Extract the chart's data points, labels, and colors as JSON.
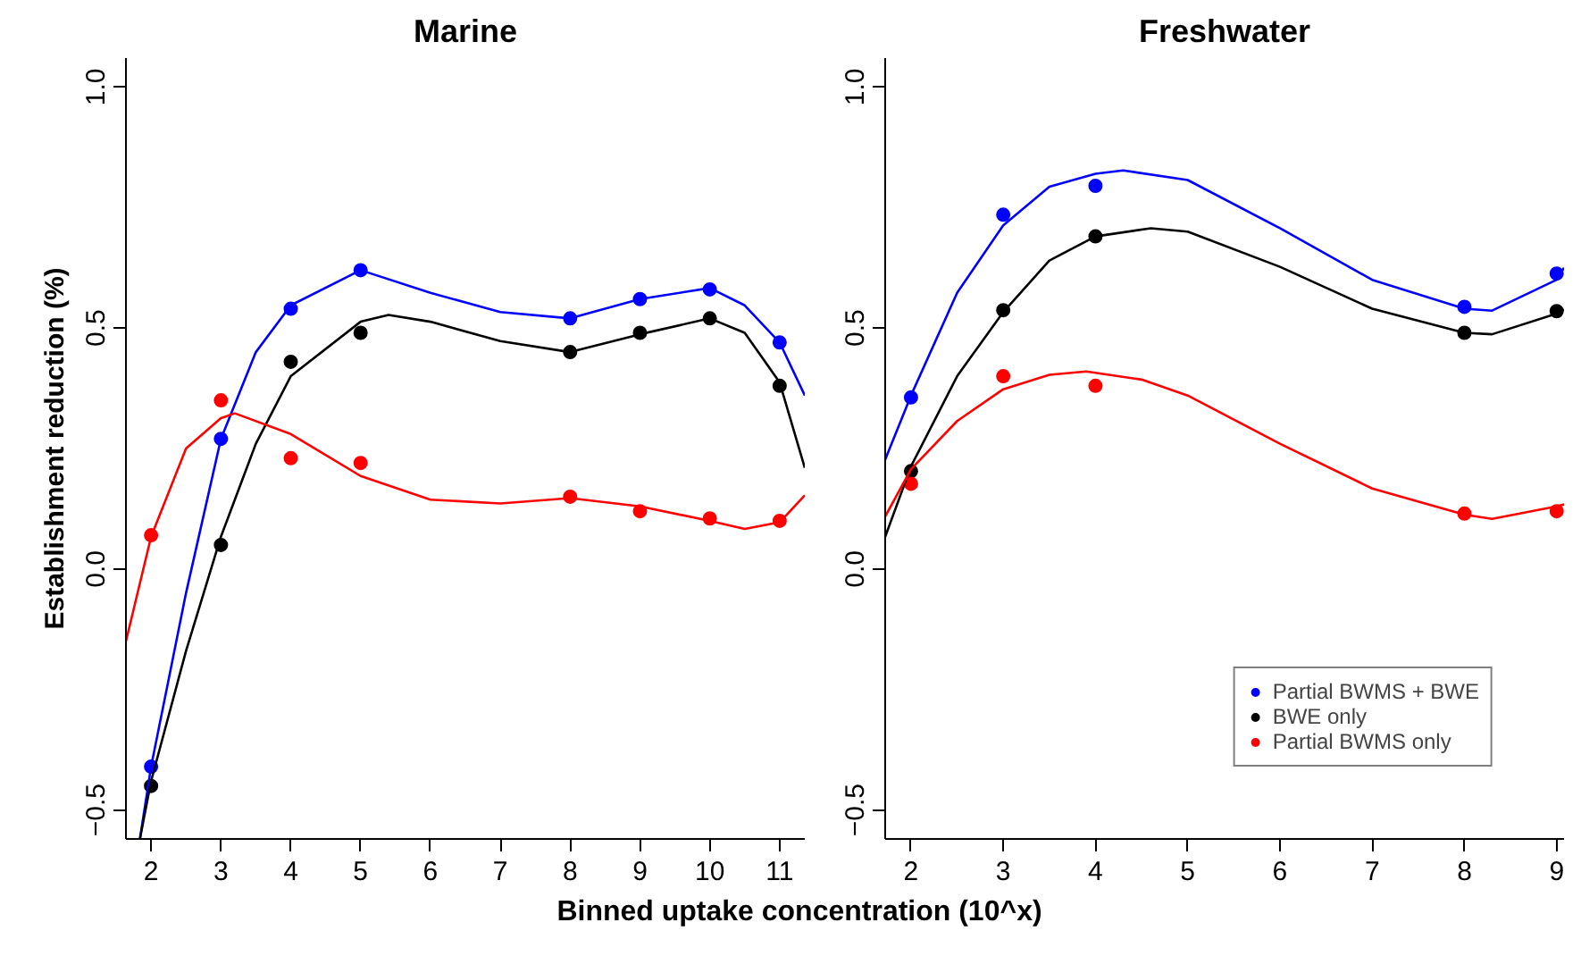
{
  "chart_data": [
    {
      "type": "scatter",
      "title": "Marine",
      "ylabel": "Establishment reduction (%)",
      "xlabel": "Binned uptake concentration (10^x)",
      "marker": "circle",
      "grid": false,
      "xlim": [
        1.64,
        11.36
      ],
      "xticks": [
        2,
        3,
        4,
        5,
        6,
        7,
        8,
        9,
        10,
        11
      ],
      "ylim": [
        -0.56,
        1.06
      ],
      "yticks": [
        {
          "value": -0.5,
          "label": "−0.5"
        },
        {
          "value": 0,
          "label": "0.0"
        },
        0.5,
        {
          "value": 1,
          "label": "1.0"
        }
      ],
      "series": [
        {
          "color": "#0000ff",
          "x": [
            2,
            3,
            4,
            5,
            8,
            9,
            10,
            11
          ],
          "values": [
            -0.41,
            0.27,
            0.54,
            0.62,
            0.52,
            0.56,
            0.58,
            0.47
          ]
        },
        {
          "color": "#000000",
          "x": [
            2,
            3,
            4,
            5,
            8,
            9,
            10,
            11
          ],
          "values": [
            -0.45,
            0.05,
            0.43,
            0.49,
            0.45,
            0.49,
            0.52,
            0.38
          ]
        },
        {
          "color": "#ff0000",
          "x": [
            2,
            3,
            4,
            5,
            8,
            9,
            10,
            11
          ],
          "values": [
            0.07,
            0.35,
            0.23,
            0.22,
            0.15,
            0.12,
            0.105,
            0.1
          ]
        },
        {
          "type": "line",
          "marker": "none",
          "color": "#0000ff",
          "x": [
            1.84,
            2,
            2.5,
            3,
            3.5,
            4,
            5,
            6,
            7,
            8,
            9,
            10,
            10.5,
            11,
            11.36
          ],
          "values": [
            -0.56,
            -0.41,
            -0.05,
            0.27,
            0.45,
            0.547,
            0.62,
            0.573,
            0.533,
            0.52,
            0.56,
            0.583,
            0.547,
            0.47,
            0.36
          ]
        },
        {
          "type": "line",
          "marker": "none",
          "color": "#000000",
          "x": [
            1.84,
            2,
            2.5,
            3,
            3.5,
            4,
            5,
            5.4,
            6,
            7,
            8,
            9,
            10,
            10.5,
            11,
            11.36
          ],
          "values": [
            -0.56,
            -0.44,
            -0.17,
            0.067,
            0.26,
            0.4,
            0.513,
            0.527,
            0.513,
            0.473,
            0.45,
            0.487,
            0.52,
            0.49,
            0.387,
            0.21
          ]
        },
        {
          "type": "line",
          "marker": "none",
          "color": "#ff0000",
          "x": [
            1.64,
            2,
            2.5,
            3,
            3.2,
            4,
            5,
            6,
            7,
            8,
            9,
            10,
            10.5,
            11,
            11.36
          ],
          "values": [
            -0.15,
            0.067,
            0.25,
            0.313,
            0.323,
            0.28,
            0.193,
            0.144,
            0.136,
            0.147,
            0.13,
            0.1,
            0.083,
            0.097,
            0.153
          ]
        }
      ]
    },
    {
      "type": "scatter",
      "title": "Freshwater",
      "marker": "circle",
      "grid": false,
      "legend": "bottom right",
      "xlim": [
        1.72,
        9.08
      ],
      "xticks": [
        2,
        3,
        4,
        5,
        6,
        7,
        8,
        9
      ],
      "ylim": [
        -0.56,
        1.06
      ],
      "yticks": [
        {
          "value": -0.5,
          "label": "−0.5"
        },
        {
          "value": 0,
          "label": "0.0"
        },
        0.5,
        {
          "value": 1,
          "label": "1.0"
        }
      ],
      "series": [
        {
          "name": "Partial BWMS + BWE",
          "color": "#0000ff",
          "x": [
            2,
            3,
            4,
            8,
            9
          ],
          "values": [
            0.356,
            0.735,
            0.795,
            0.544,
            0.613
          ]
        },
        {
          "name": "BWE only",
          "color": "#000000",
          "x": [
            2,
            3,
            4,
            8,
            9
          ],
          "values": [
            0.203,
            0.537,
            0.69,
            0.49,
            0.535
          ]
        },
        {
          "name": "Partial BWMS only",
          "color": "#ff0000",
          "x": [
            2,
            3,
            4,
            8,
            9
          ],
          "values": [
            0.177,
            0.4,
            0.38,
            0.115,
            0.12
          ]
        },
        {
          "type": "line",
          "marker": "none",
          "color": "#0000ff",
          "x": [
            1.72,
            2,
            2.5,
            3,
            3.5,
            4,
            4.3,
            5,
            6,
            7,
            8,
            8.3,
            9,
            9.08
          ],
          "values": [
            0.227,
            0.36,
            0.573,
            0.713,
            0.793,
            0.82,
            0.827,
            0.807,
            0.707,
            0.6,
            0.54,
            0.536,
            0.6,
            0.625
          ]
        },
        {
          "type": "line",
          "marker": "none",
          "color": "#000000",
          "x": [
            1.72,
            2,
            2.5,
            3,
            3.5,
            4,
            4.6,
            5,
            6,
            7,
            8,
            8.3,
            9,
            9.08
          ],
          "values": [
            0.067,
            0.213,
            0.4,
            0.533,
            0.64,
            0.69,
            0.707,
            0.7,
            0.627,
            0.54,
            0.49,
            0.487,
            0.53,
            0.538
          ]
        },
        {
          "type": "line",
          "marker": "none",
          "color": "#ff0000",
          "x": [
            1.72,
            2,
            2.5,
            3,
            3.5,
            3.9,
            4.5,
            5,
            6,
            7,
            8,
            8.3,
            9,
            9.08
          ],
          "values": [
            0.109,
            0.207,
            0.307,
            0.373,
            0.403,
            0.41,
            0.393,
            0.36,
            0.26,
            0.167,
            0.113,
            0.104,
            0.13,
            0.134
          ]
        }
      ]
    }
  ]
}
